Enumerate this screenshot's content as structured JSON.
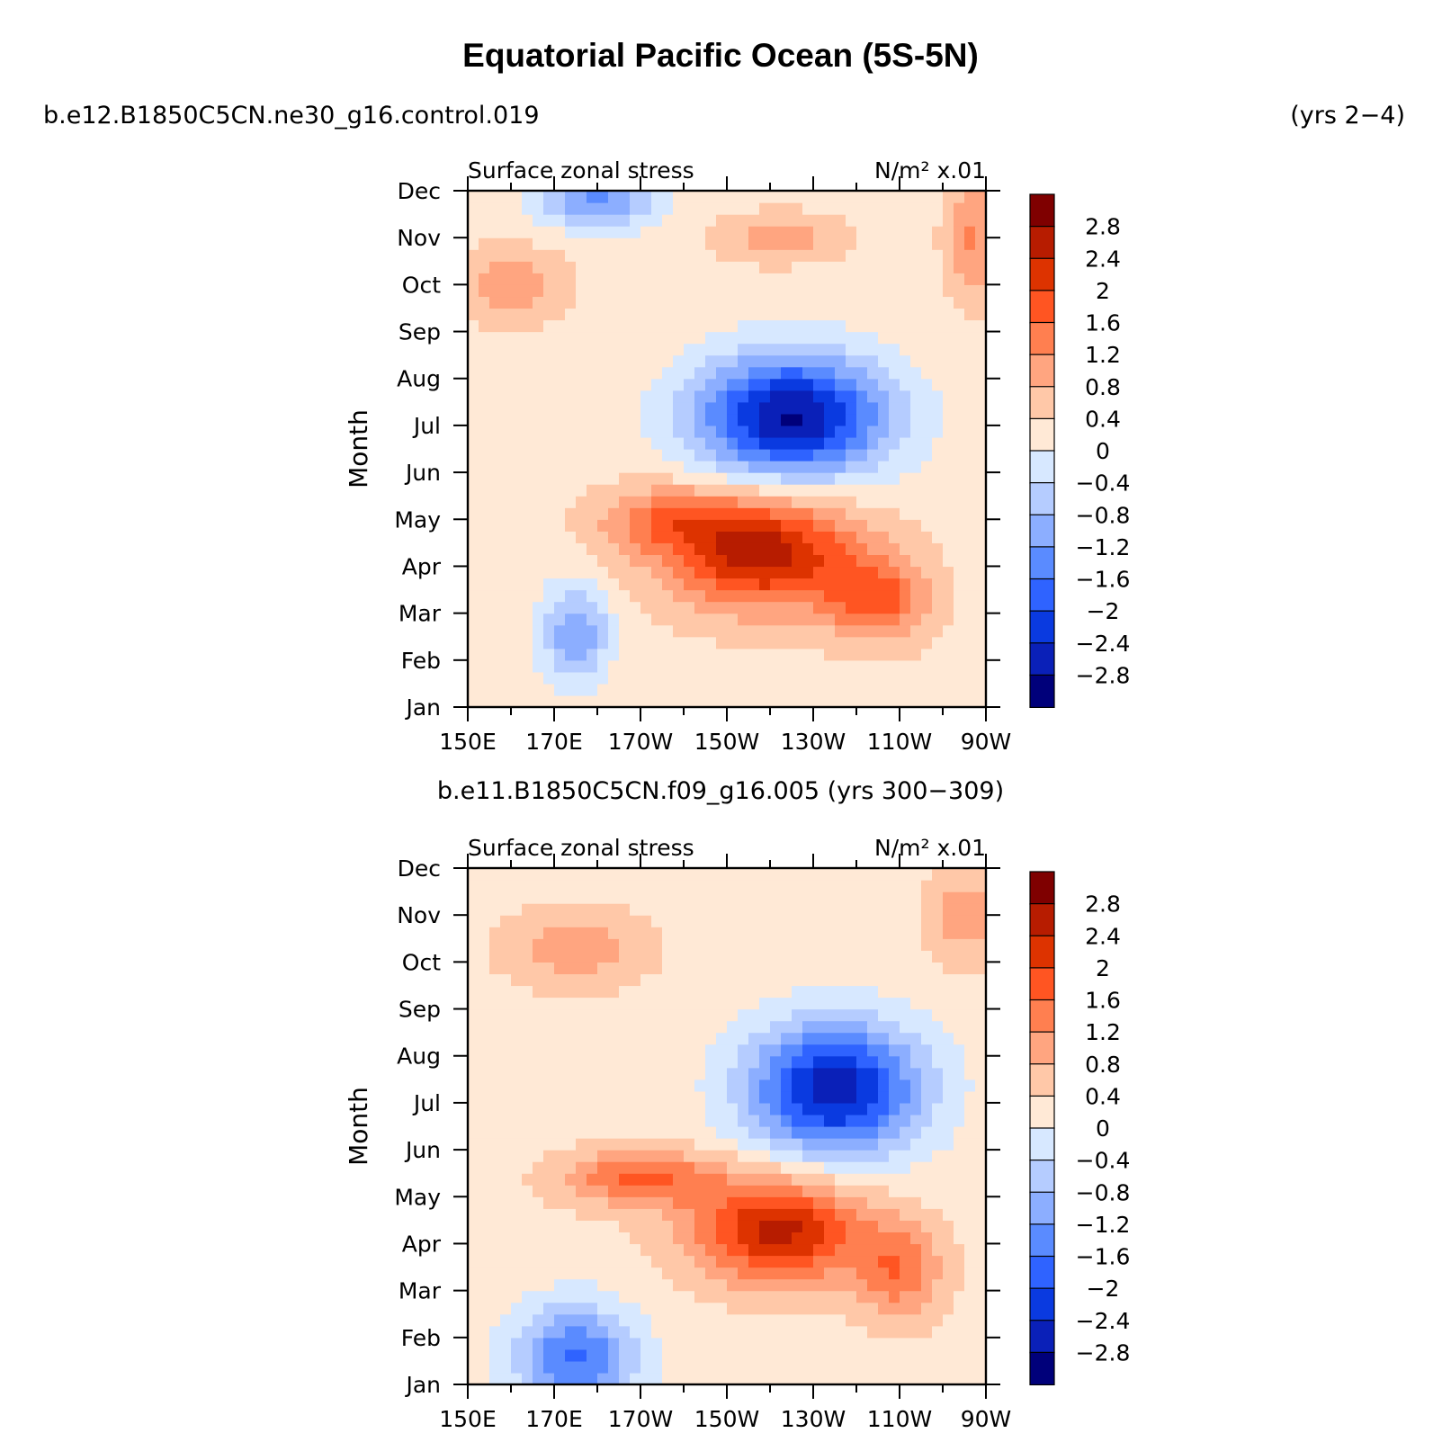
{
  "title": "Equatorial Pacific Ocean (5S-5N)",
  "top_case": "b.e12.B1850C5CN.ne30_g16.control.019",
  "top_years": "(yrs 2−4)",
  "bottom_case_label": "b.e11.B1850C5CN.f09_g16.005 (yrs 300−309)",
  "colorbar_levels": [
    "2.8",
    "2.4",
    "2",
    "1.6",
    "1.2",
    "0.8",
    "0.4",
    "0",
    "−0.4",
    "−0.8",
    "−1.2",
    "−1.6",
    "−2",
    "−2.4",
    "−2.8"
  ],
  "colorbar_colors": [
    "#7f0000",
    "#b71c00",
    "#dd3300",
    "#ff5522",
    "#ff7f50",
    "#ffa580",
    "#ffc8a8",
    "#ffe9d6",
    "#d7e8ff",
    "#b5ccff",
    "#8caeff",
    "#5a8bff",
    "#2f63ff",
    "#0a3ae0",
    "#0a20b8",
    "#00007a"
  ],
  "chart_data": [
    {
      "type": "heatmap",
      "name": "top-panel",
      "title": "Surface zonal stress",
      "units_label": "N/m² x.01",
      "xlabel": "",
      "ylabel": "Month",
      "x_ticks": [
        "150E",
        "170E",
        "170W",
        "150W",
        "130W",
        "110W",
        "90W"
      ],
      "x_lon": [
        150,
        170,
        190,
        210,
        230,
        250,
        270
      ],
      "xlim": [
        150,
        270
      ],
      "y_ticks": [
        "Jan",
        "Feb",
        "Mar",
        "Apr",
        "May",
        "Jun",
        "Jul",
        "Aug",
        "Sep",
        "Oct",
        "Nov",
        "Dec"
      ],
      "ylim": [
        1,
        12
      ],
      "min_lon": 230,
      "min_month": 7,
      "min_value": -2.9,
      "max_lon": 212,
      "max_month": 4.5,
      "max_value": 2.3,
      "features": [
        {
          "lon": 225,
          "month": 7.2,
          "value": -3.1,
          "sx": 22,
          "sy": 1.3
        },
        {
          "lon": 218,
          "month": 4.3,
          "value": 2.4,
          "sx": 22,
          "sy": 1.2
        },
        {
          "lon": 245,
          "month": 3.3,
          "value": 1.4,
          "sx": 12,
          "sy": 0.9
        },
        {
          "lon": 195,
          "month": 5.0,
          "value": 1.0,
          "sx": 16,
          "sy": 0.7
        },
        {
          "lon": 175,
          "month": 2.6,
          "value": -1.4,
          "sx": 8,
          "sy": 1.0
        },
        {
          "lon": 160,
          "month": 10.0,
          "value": 0.8,
          "sx": 12,
          "sy": 0.8
        },
        {
          "lon": 222,
          "month": 11.0,
          "value": 0.8,
          "sx": 14,
          "sy": 0.5
        },
        {
          "lon": 180,
          "month": 11.8,
          "value": -1.5,
          "sx": 14,
          "sy": 0.6
        },
        {
          "lon": 267,
          "month": 11.0,
          "value": 1.0,
          "sx": 6,
          "sy": 1.3
        }
      ]
    },
    {
      "type": "heatmap",
      "name": "bottom-panel",
      "title": "Surface zonal stress",
      "units_label": "N/m² x.01",
      "xlabel": "",
      "ylabel": "Month",
      "x_ticks": [
        "150E",
        "170E",
        "170W",
        "150W",
        "130W",
        "110W",
        "90W"
      ],
      "x_lon": [
        150,
        170,
        190,
        210,
        230,
        250,
        270
      ],
      "xlim": [
        150,
        270
      ],
      "y_ticks": [
        "Jan",
        "Feb",
        "Mar",
        "Apr",
        "May",
        "Jun",
        "Jul",
        "Aug",
        "Sep",
        "Oct",
        "Nov",
        "Dec"
      ],
      "ylim": [
        1,
        12
      ],
      "min_lon": 240,
      "min_month": 7,
      "min_value": -2.8,
      "max_lon": 222,
      "max_month": 4.3,
      "max_value": 2.2,
      "features": [
        {
          "lon": 235,
          "month": 7.3,
          "value": -2.9,
          "sx": 20,
          "sy": 1.4
        },
        {
          "lon": 222,
          "month": 4.3,
          "value": 2.3,
          "sx": 20,
          "sy": 1.1
        },
        {
          "lon": 190,
          "month": 5.4,
          "value": 1.4,
          "sx": 18,
          "sy": 0.6
        },
        {
          "lon": 250,
          "month": 3.4,
          "value": 1.2,
          "sx": 10,
          "sy": 1.0
        },
        {
          "lon": 175,
          "month": 1.6,
          "value": -1.9,
          "sx": 14,
          "sy": 1.1
        },
        {
          "lon": 175,
          "month": 10.3,
          "value": 0.8,
          "sx": 16,
          "sy": 0.8
        },
        {
          "lon": 265,
          "month": 11.0,
          "value": 0.8,
          "sx": 8,
          "sy": 1.0
        }
      ]
    }
  ]
}
